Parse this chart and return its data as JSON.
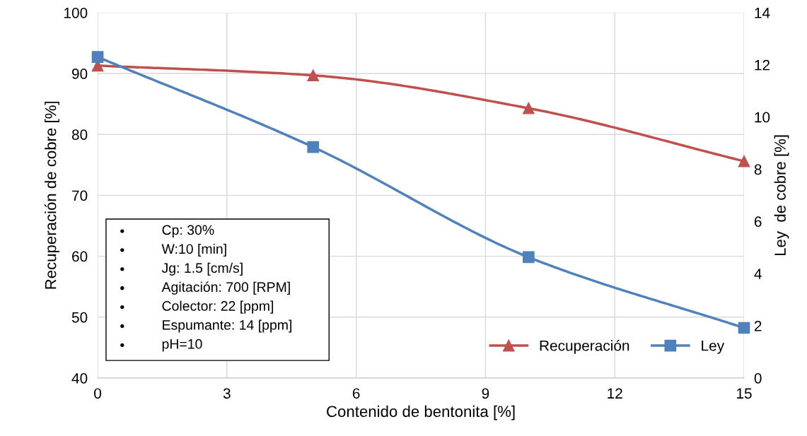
{
  "chart_data": {
    "type": "line",
    "xlabel": "Contenido de bentonita [%]",
    "ylabel": "Recuperación de cobre [%]",
    "y2label": "Ley  de cobre [%]",
    "x": [
      0,
      5,
      10,
      15
    ],
    "series": [
      {
        "name": "Recuperación",
        "color": "#c0504d",
        "values": [
          91.3,
          89.7,
          84.3,
          75.6
        ],
        "marker": "triangle"
      },
      {
        "name": "Ley",
        "color": "#4f81bd",
        "values": [
          12.3,
          8.85,
          4.63,
          1.92
        ],
        "marker": "square",
        "axis": "y2"
      }
    ],
    "xlim": [
      0,
      15
    ],
    "xticks": [
      0,
      3,
      6,
      9,
      12,
      15
    ],
    "ylim": [
      40,
      100
    ],
    "yticks": [
      40,
      50,
      60,
      70,
      80,
      90,
      100
    ],
    "y2lim": [
      0,
      14
    ],
    "y2ticks": [
      0,
      2,
      4,
      6,
      8,
      10,
      12,
      14
    ],
    "grid": true,
    "legend": "bottom right",
    "line_style": "solid",
    "annotations": [
      "Cp: 30%",
      "W:10 [min]",
      "Jg: 1.5 [cm/s]",
      "Agitación: 700 [RPM]",
      "Colector: 22 [ppm]",
      "Espumante: 14 [ppm]",
      "pH=10"
    ]
  }
}
